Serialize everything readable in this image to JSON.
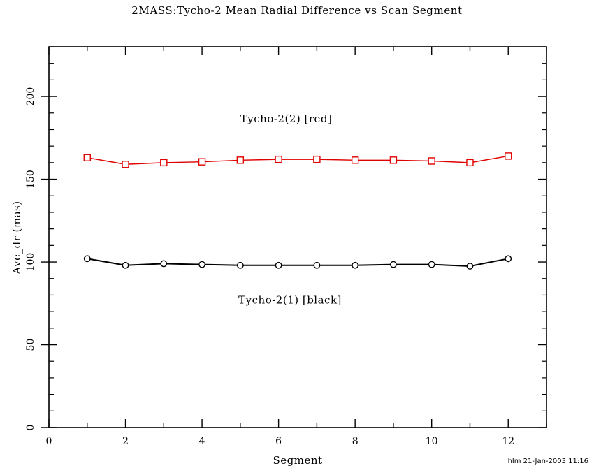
{
  "footer": {
    "credit": "hlm 21-Jan-2003 11:16"
  },
  "chart_data": {
    "type": "line",
    "title": "2MASS:Tycho-2 Mean Radial Difference vs Scan Segment",
    "xlabel": "Segment",
    "ylabel": "Ave_dr (mas)",
    "xlim": [
      0,
      13
    ],
    "ylim": [
      0,
      230
    ],
    "grid": false,
    "legend_position": "none",
    "x_major_ticks": [
      0,
      2,
      4,
      6,
      8,
      10,
      12
    ],
    "x_minor_step": 1,
    "y_major_ticks": [
      0,
      50,
      100,
      150,
      200
    ],
    "y_minor_step": 10,
    "x": [
      1,
      2,
      3,
      4,
      5,
      6,
      7,
      8,
      9,
      10,
      11,
      12
    ],
    "series": [
      {
        "name": "Tycho-2(2)",
        "color": "#e00000",
        "marker": "square",
        "line_width": 1.4,
        "values": [
          163,
          159,
          160,
          160.5,
          161.5,
          162,
          162,
          161.5,
          161.5,
          161,
          160,
          164
        ]
      },
      {
        "name": "Tycho-2(1)",
        "color": "#000000",
        "marker": "circle",
        "line_width": 2,
        "values": [
          102,
          98,
          99,
          98.5,
          98,
          98,
          98,
          98,
          98.5,
          98.5,
          97.5,
          102
        ]
      }
    ],
    "annotations": [
      {
        "text": "Tycho-2(2) [red]",
        "x": 6.2,
        "y": 186.5,
        "color": "#000000"
      },
      {
        "text": "Tycho-2(1) [black]",
        "x": 6.3,
        "y": 77,
        "color": "#000000"
      }
    ],
    "frame_color": "#000000"
  }
}
